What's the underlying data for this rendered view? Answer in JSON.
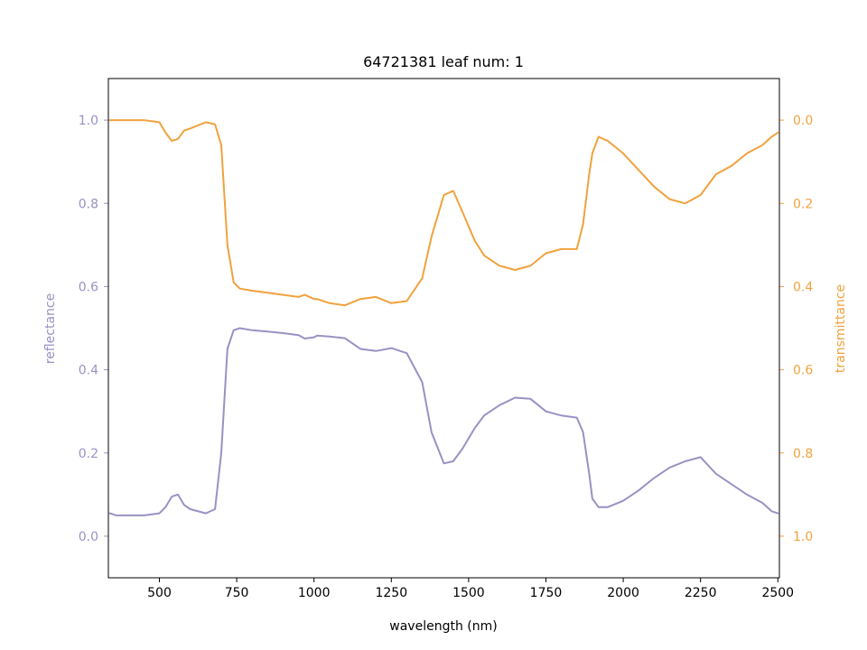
{
  "chart_data": {
    "type": "line",
    "title": "64721381 leaf num: 1",
    "xlabel": "wavelength (nm)",
    "ylabel_left": "reflectance",
    "ylabel_right": "transmittance",
    "xlim": [
      335,
      2505
    ],
    "ylim_left": [
      -0.1,
      1.1
    ],
    "ylim_right": [
      1.1,
      -0.1
    ],
    "right_axis_inverted": true,
    "grid": false,
    "x_ticks": [
      500,
      750,
      1000,
      1250,
      1500,
      1750,
      2000,
      2250,
      2500
    ],
    "x_tick_labels": [
      "500",
      "750",
      "1000",
      "1250",
      "1500",
      "1750",
      "2000",
      "2250",
      "2500"
    ],
    "y_left_ticks": [
      0.0,
      0.2,
      0.4,
      0.6,
      0.8,
      1.0
    ],
    "y_left_tick_labels": [
      "0.0",
      "0.2",
      "0.4",
      "0.6",
      "0.8",
      "1.0"
    ],
    "y_right_ticks": [
      0.0,
      0.2,
      0.4,
      0.6,
      0.8,
      1.0
    ],
    "y_right_tick_labels": [
      "0.0",
      "0.2",
      "0.4",
      "0.6",
      "0.8",
      "1.0"
    ],
    "colors": {
      "reflectance": "#9892c4",
      "transmittance": "#f0a23e",
      "axis": "#000000"
    },
    "series": [
      {
        "axis": "left",
        "color": "#9892c4",
        "x": [
          340,
          360,
          400,
          450,
          500,
          520,
          540,
          560,
          580,
          600,
          650,
          680,
          700,
          720,
          740,
          760,
          800,
          850,
          900,
          950,
          970,
          1000,
          1010,
          1050,
          1100,
          1150,
          1200,
          1250,
          1300,
          1350,
          1380,
          1420,
          1450,
          1480,
          1520,
          1550,
          1600,
          1650,
          1700,
          1750,
          1800,
          1850,
          1870,
          1890,
          1900,
          1920,
          1950,
          2000,
          2050,
          2100,
          2150,
          2200,
          2250,
          2300,
          2350,
          2400,
          2450,
          2480,
          2500
        ],
        "y": [
          0.055,
          0.05,
          0.05,
          0.05,
          0.055,
          0.07,
          0.095,
          0.1,
          0.075,
          0.065,
          0.055,
          0.065,
          0.2,
          0.45,
          0.495,
          0.5,
          0.495,
          0.492,
          0.488,
          0.483,
          0.475,
          0.478,
          0.482,
          0.48,
          0.476,
          0.45,
          0.445,
          0.452,
          0.44,
          0.37,
          0.25,
          0.175,
          0.18,
          0.21,
          0.26,
          0.29,
          0.315,
          0.333,
          0.33,
          0.3,
          0.29,
          0.285,
          0.25,
          0.15,
          0.09,
          0.07,
          0.07,
          0.085,
          0.11,
          0.14,
          0.165,
          0.18,
          0.19,
          0.15,
          0.125,
          0.1,
          0.08,
          0.06,
          0.055
        ]
      },
      {
        "axis": "right",
        "color": "#f0a23e",
        "x": [
          340,
          360,
          400,
          450,
          500,
          520,
          540,
          560,
          580,
          600,
          650,
          680,
          700,
          720,
          740,
          760,
          800,
          850,
          900,
          950,
          970,
          1000,
          1010,
          1050,
          1100,
          1150,
          1200,
          1250,
          1300,
          1350,
          1380,
          1420,
          1450,
          1480,
          1520,
          1550,
          1600,
          1650,
          1700,
          1750,
          1800,
          1850,
          1870,
          1890,
          1900,
          1920,
          1950,
          2000,
          2050,
          2100,
          2150,
          2200,
          2250,
          2300,
          2350,
          2400,
          2450,
          2480,
          2500
        ],
        "y": [
          0.0,
          0.0,
          0.0,
          0.0,
          0.005,
          0.03,
          0.05,
          0.045,
          0.025,
          0.02,
          0.005,
          0.01,
          0.06,
          0.3,
          0.39,
          0.405,
          0.41,
          0.415,
          0.42,
          0.425,
          0.42,
          0.43,
          0.43,
          0.44,
          0.445,
          0.43,
          0.425,
          0.44,
          0.435,
          0.38,
          0.28,
          0.18,
          0.17,
          0.22,
          0.29,
          0.325,
          0.35,
          0.36,
          0.35,
          0.32,
          0.31,
          0.31,
          0.25,
          0.13,
          0.08,
          0.04,
          0.05,
          0.08,
          0.12,
          0.16,
          0.19,
          0.2,
          0.18,
          0.13,
          0.11,
          0.08,
          0.06,
          0.04,
          0.03
        ]
      }
    ]
  }
}
